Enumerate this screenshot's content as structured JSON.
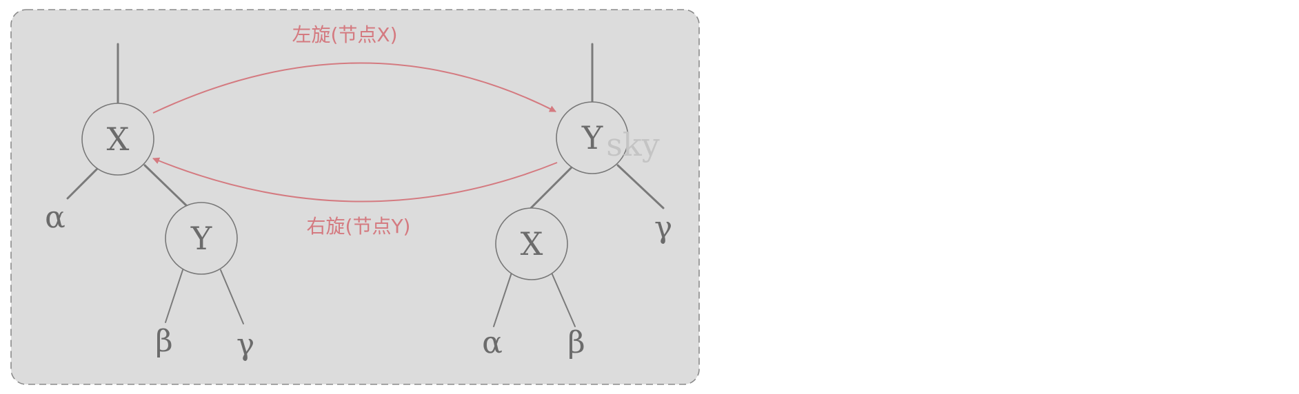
{
  "diagram": {
    "left_tree": {
      "root_label": "X",
      "child_label": "Y",
      "leaf_alpha": "α",
      "leaf_beta": "β",
      "leaf_gamma": "γ"
    },
    "right_tree": {
      "root_label": "Y",
      "child_label": "X",
      "leaf_alpha": "α",
      "leaf_beta": "β",
      "leaf_gamma": "γ"
    },
    "left_rotate_label": "左旋(节点X)",
    "right_rotate_label": "右旋(节点Y)",
    "watermark": "sky",
    "arrow_color": "#d47a80",
    "panel_color": "#dcdcdc"
  }
}
